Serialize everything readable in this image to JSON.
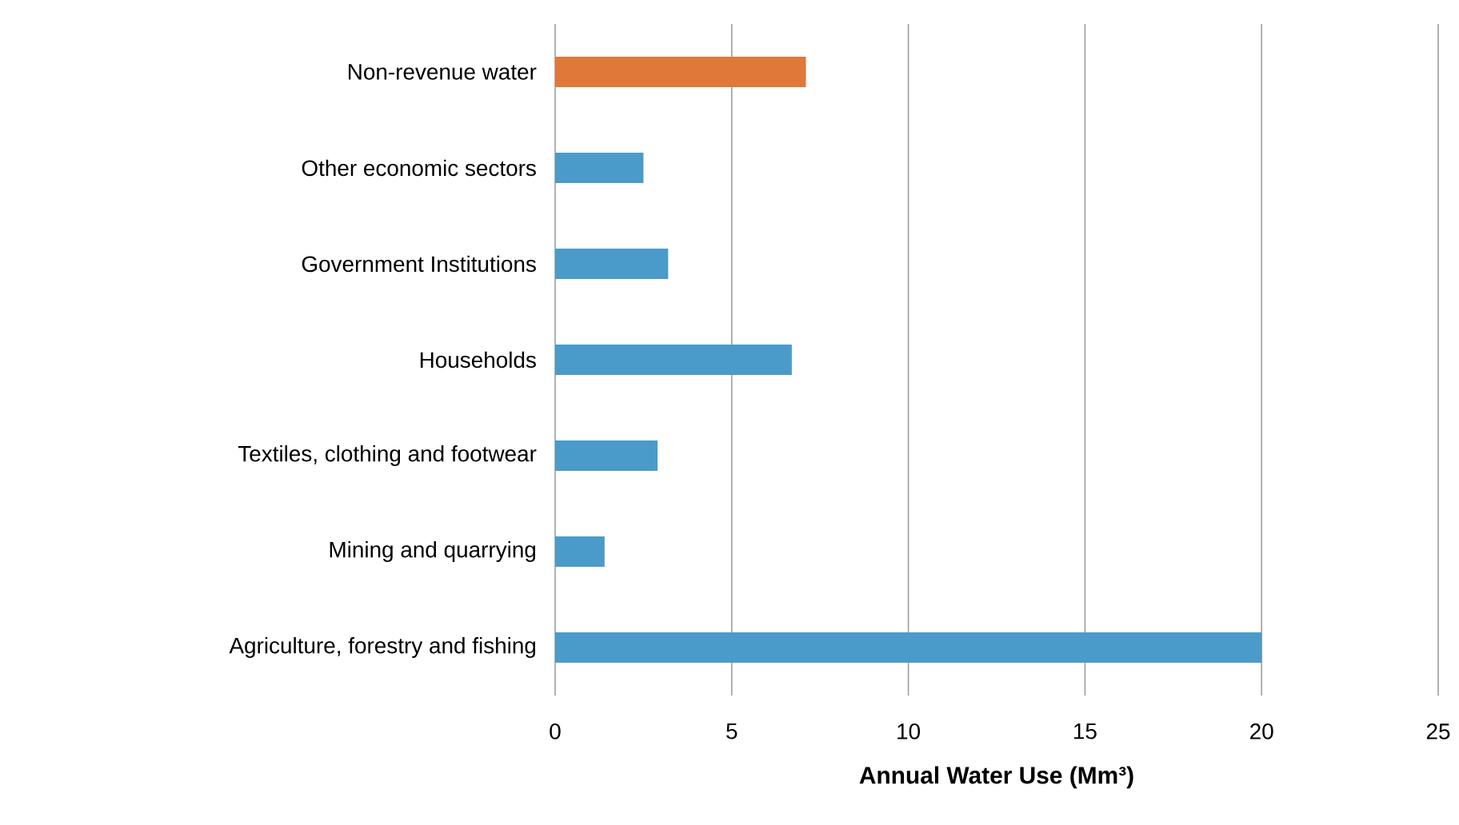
{
  "chart_data": {
    "type": "bar",
    "orientation": "horizontal",
    "xlabel": "Annual Water Use (Mm³)",
    "categories": [
      "Non-revenue water",
      "Other economic sectors",
      "Government Institutions",
      "Households",
      "Textiles, clothing and footwear",
      "Mining and quarrying",
      "Agriculture, forestry and fishing"
    ],
    "values": [
      7.1,
      2.5,
      3.2,
      6.7,
      2.9,
      1.4,
      20
    ],
    "colors": [
      "#e07838",
      "#4a9bc9",
      "#4a9bc9",
      "#4a9bc9",
      "#4a9bc9",
      "#4a9bc9",
      "#4a9bc9"
    ],
    "xlim": [
      0,
      25
    ],
    "xticks": [
      0,
      5,
      10,
      15,
      20,
      25
    ],
    "grid": "x"
  }
}
